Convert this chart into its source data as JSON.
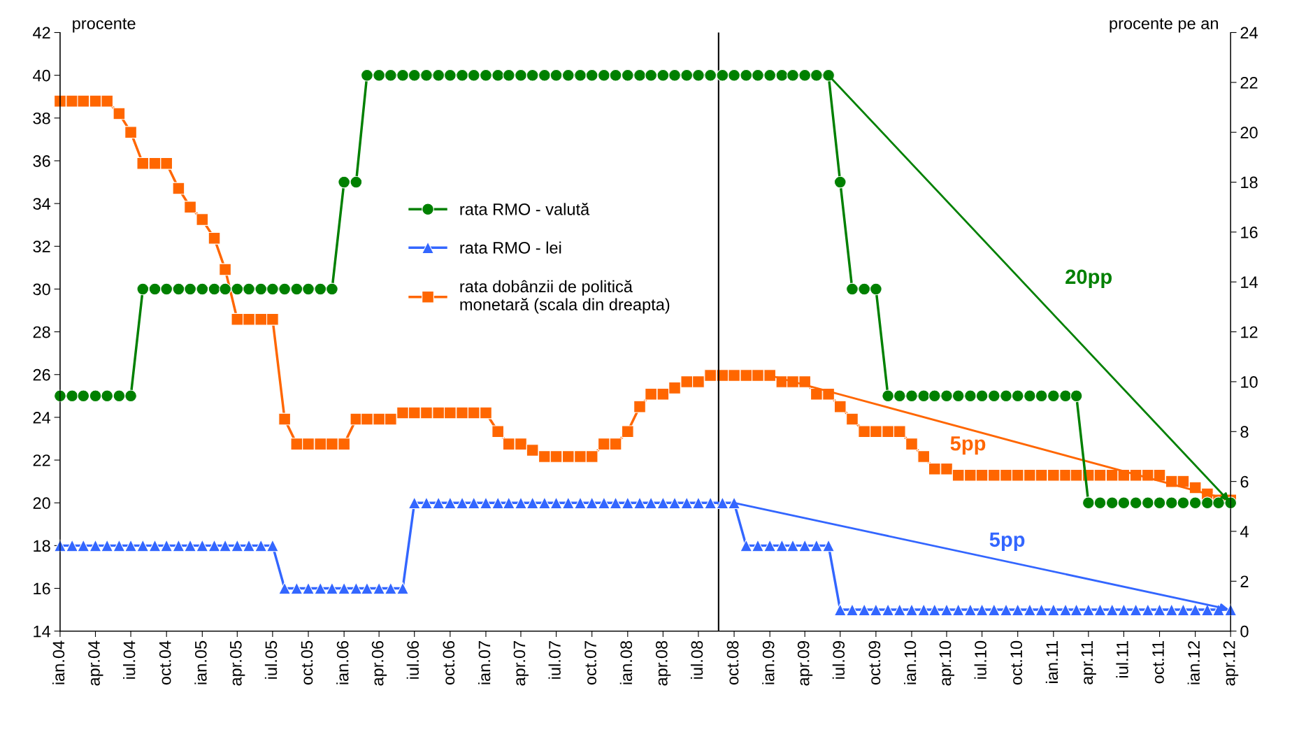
{
  "chart_data": {
    "type": "line",
    "ylabel": "procente",
    "y2label": "procente pe an",
    "x": [
      "2004-01",
      "2004-02",
      "2004-03",
      "2004-04",
      "2004-05",
      "2004-06",
      "2004-07",
      "2004-08",
      "2004-09",
      "2004-10",
      "2004-11",
      "2004-12",
      "2005-01",
      "2005-02",
      "2005-03",
      "2005-04",
      "2005-05",
      "2005-06",
      "2005-07",
      "2005-08",
      "2005-09",
      "2005-10",
      "2005-11",
      "2005-12",
      "2006-01",
      "2006-02",
      "2006-03",
      "2006-04",
      "2006-05",
      "2006-06",
      "2006-07",
      "2006-08",
      "2006-09",
      "2006-10",
      "2006-11",
      "2006-12",
      "2007-01",
      "2007-02",
      "2007-03",
      "2007-04",
      "2007-05",
      "2007-06",
      "2007-07",
      "2007-08",
      "2007-09",
      "2007-10",
      "2007-11",
      "2007-12",
      "2008-01",
      "2008-02",
      "2008-03",
      "2008-04",
      "2008-05",
      "2008-06",
      "2008-07",
      "2008-08",
      "2008-09",
      "2008-10",
      "2008-11",
      "2008-12",
      "2009-01",
      "2009-02",
      "2009-03",
      "2009-04",
      "2009-05",
      "2009-06",
      "2009-07",
      "2009-08",
      "2009-09",
      "2009-10",
      "2009-11",
      "2009-12",
      "2010-01",
      "2010-02",
      "2010-03",
      "2010-04",
      "2010-05",
      "2010-06",
      "2010-07",
      "2010-08",
      "2010-09",
      "2010-10",
      "2010-11",
      "2010-12",
      "2011-01",
      "2011-02",
      "2011-03",
      "2011-04",
      "2011-05",
      "2011-06",
      "2011-07",
      "2011-08",
      "2011-09",
      "2011-10",
      "2011-11",
      "2011-12",
      "2012-01",
      "2012-02",
      "2012-03",
      "2012-04"
    ],
    "series": [
      {
        "name": "rata RMO - valută",
        "color": "#008000",
        "marker": "circle",
        "values": [
          25,
          25,
          25,
          25,
          25,
          25,
          25,
          30,
          30,
          30,
          30,
          30,
          30,
          30,
          30,
          30,
          30,
          30,
          30,
          30,
          30,
          30,
          30,
          30,
          35,
          35,
          40,
          40,
          40,
          40,
          40,
          40,
          40,
          40,
          40,
          40,
          40,
          40,
          40,
          40,
          40,
          40,
          40,
          40,
          40,
          40,
          40,
          40,
          40,
          40,
          40,
          40,
          40,
          40,
          40,
          40,
          40,
          40,
          40,
          40,
          40,
          40,
          40,
          40,
          40,
          40,
          35,
          30,
          30,
          30,
          25,
          25,
          25,
          25,
          25,
          25,
          25,
          25,
          25,
          25,
          25,
          25,
          25,
          25,
          25,
          25,
          25,
          20,
          20,
          20,
          20,
          20,
          20,
          20,
          20,
          20,
          20,
          20,
          20,
          20
        ]
      },
      {
        "name": "rata RMO - lei",
        "color": "#3366ff",
        "marker": "triangle",
        "values": [
          18,
          18,
          18,
          18,
          18,
          18,
          18,
          18,
          18,
          18,
          18,
          18,
          18,
          18,
          18,
          18,
          18,
          18,
          18,
          16,
          16,
          16,
          16,
          16,
          16,
          16,
          16,
          16,
          16,
          16,
          20,
          20,
          20,
          20,
          20,
          20,
          20,
          20,
          20,
          20,
          20,
          20,
          20,
          20,
          20,
          20,
          20,
          20,
          20,
          20,
          20,
          20,
          20,
          20,
          20,
          20,
          20,
          20,
          18,
          18,
          18,
          18,
          18,
          18,
          18,
          18,
          15,
          15,
          15,
          15,
          15,
          15,
          15,
          15,
          15,
          15,
          15,
          15,
          15,
          15,
          15,
          15,
          15,
          15,
          15,
          15,
          15,
          15,
          15,
          15,
          15,
          15,
          15,
          15,
          15,
          15,
          15,
          15,
          15,
          15
        ]
      },
      {
        "name": "rata dobânzii de politică\nmonetară (scala din dreapta)",
        "color": "#ff6600",
        "marker": "square",
        "axis": "y2",
        "values": [
          21.25,
          21.25,
          21.25,
          21.25,
          21.25,
          20.75,
          20,
          18.75,
          18.75,
          18.75,
          17.75,
          17,
          16.5,
          15.75,
          14.5,
          12.5,
          12.5,
          12.5,
          12.5,
          8.5,
          7.5,
          7.5,
          7.5,
          7.5,
          7.5,
          8.5,
          8.5,
          8.5,
          8.5,
          8.75,
          8.75,
          8.75,
          8.75,
          8.75,
          8.75,
          8.75,
          8.75,
          8,
          7.5,
          7.5,
          7.25,
          7,
          7,
          7,
          7,
          7,
          7.5,
          7.5,
          8,
          9,
          9.5,
          9.5,
          9.75,
          10,
          10,
          10.25,
          10.25,
          10.25,
          10.25,
          10.25,
          10.25,
          10,
          10,
          10,
          9.5,
          9.5,
          9,
          8.5,
          8,
          8,
          8,
          8,
          7.5,
          7,
          6.5,
          6.5,
          6.25,
          6.25,
          6.25,
          6.25,
          6.25,
          6.25,
          6.25,
          6.25,
          6.25,
          6.25,
          6.25,
          6.25,
          6.25,
          6.25,
          6.25,
          6.25,
          6.25,
          6.25,
          6,
          6,
          5.75,
          5.5,
          5.25,
          5.25
        ]
      }
    ],
    "xlim": [
      "2004-01",
      "2012-04"
    ],
    "xticks": [
      {
        "value": "2004-01",
        "label": "ian.04"
      },
      {
        "value": "2004-04",
        "label": "apr.04"
      },
      {
        "value": "2004-07",
        "label": "iul.04"
      },
      {
        "value": "2004-10",
        "label": "oct.04"
      },
      {
        "value": "2005-01",
        "label": "ian.05"
      },
      {
        "value": "2005-04",
        "label": "apr.05"
      },
      {
        "value": "2005-07",
        "label": "iul.05"
      },
      {
        "value": "2005-10",
        "label": "oct.05"
      },
      {
        "value": "2006-01",
        "label": "ian.06"
      },
      {
        "value": "2006-04",
        "label": "apr.06"
      },
      {
        "value": "2006-07",
        "label": "iul.06"
      },
      {
        "value": "2006-10",
        "label": "oct.06"
      },
      {
        "value": "2007-01",
        "label": "ian.07"
      },
      {
        "value": "2007-04",
        "label": "apr.07"
      },
      {
        "value": "2007-07",
        "label": "iul.07"
      },
      {
        "value": "2007-10",
        "label": "oct.07"
      },
      {
        "value": "2008-01",
        "label": "ian.08"
      },
      {
        "value": "2008-04",
        "label": "apr.08"
      },
      {
        "value": "2008-07",
        "label": "iul.08"
      },
      {
        "value": "2008-10",
        "label": "oct.08"
      },
      {
        "value": "2009-01",
        "label": "ian.09"
      },
      {
        "value": "2009-04",
        "label": "apr.09"
      },
      {
        "value": "2009-07",
        "label": "iul.09"
      },
      {
        "value": "2009-10",
        "label": "oct.09"
      },
      {
        "value": "2010-01",
        "label": "ian.10"
      },
      {
        "value": "2010-04",
        "label": "apr.10"
      },
      {
        "value": "2010-07",
        "label": "iul.10"
      },
      {
        "value": "2010-10",
        "label": "oct.10"
      },
      {
        "value": "2011-01",
        "label": "ian.11"
      },
      {
        "value": "2011-04",
        "label": "apr.11"
      },
      {
        "value": "2011-07",
        "label": "iul.11"
      },
      {
        "value": "2011-10",
        "label": "oct.11"
      },
      {
        "value": "2012-01",
        "label": "ian.12"
      },
      {
        "value": "2012-04",
        "label": "apr.12"
      }
    ],
    "ylim": [
      14,
      42
    ],
    "yticks": [
      14,
      16,
      18,
      20,
      22,
      24,
      26,
      28,
      30,
      32,
      34,
      36,
      38,
      40,
      42
    ],
    "y2lim": [
      0,
      24
    ],
    "y2ticks": [
      0,
      2,
      4,
      6,
      8,
      10,
      12,
      14,
      16,
      18,
      20,
      22,
      24
    ],
    "ref_lines": [
      {
        "axis": "x",
        "value": "2008-08-22",
        "color": "#000000"
      }
    ],
    "annotations": [
      "20pp",
      "5pp",
      "5pp"
    ],
    "legend": "top center",
    "grid": false,
    "line_style": "solid"
  }
}
